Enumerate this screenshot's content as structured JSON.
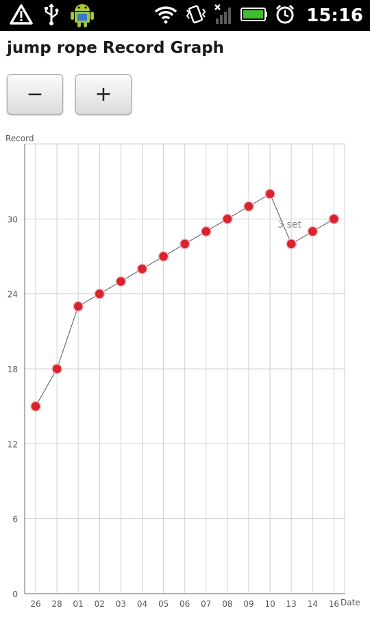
{
  "status_bar": {
    "time": "15:16",
    "icons": [
      "warning-icon",
      "usb-icon",
      "android-icon",
      "wifi-icon",
      "vibrate-icon",
      "signal-icon",
      "battery-icon",
      "alarm-icon"
    ]
  },
  "app": {
    "title": "jump rope Record Graph"
  },
  "controls": {
    "minus_label": "−",
    "plus_label": "+"
  },
  "colors": {
    "point": "#d9232e",
    "line": "#555555",
    "grid": "#cfcfcf",
    "axis": "#9a9a9a"
  },
  "chart_data": {
    "type": "line",
    "ylabel": "Record",
    "xlabel": "Date",
    "categories": [
      "26",
      "28",
      "01",
      "02",
      "03",
      "04",
      "05",
      "06",
      "07",
      "08",
      "09",
      "10",
      "13",
      "14",
      "16"
    ],
    "values": [
      15,
      18,
      23,
      24,
      25,
      26,
      27,
      28,
      29,
      30,
      31,
      32,
      28,
      29,
      30
    ],
    "yticks": [
      0,
      6,
      12,
      18,
      24,
      30
    ],
    "ylim": [
      0,
      36
    ],
    "grid": true,
    "annotations": [
      {
        "text": "3 set",
        "category": "13"
      }
    ]
  }
}
